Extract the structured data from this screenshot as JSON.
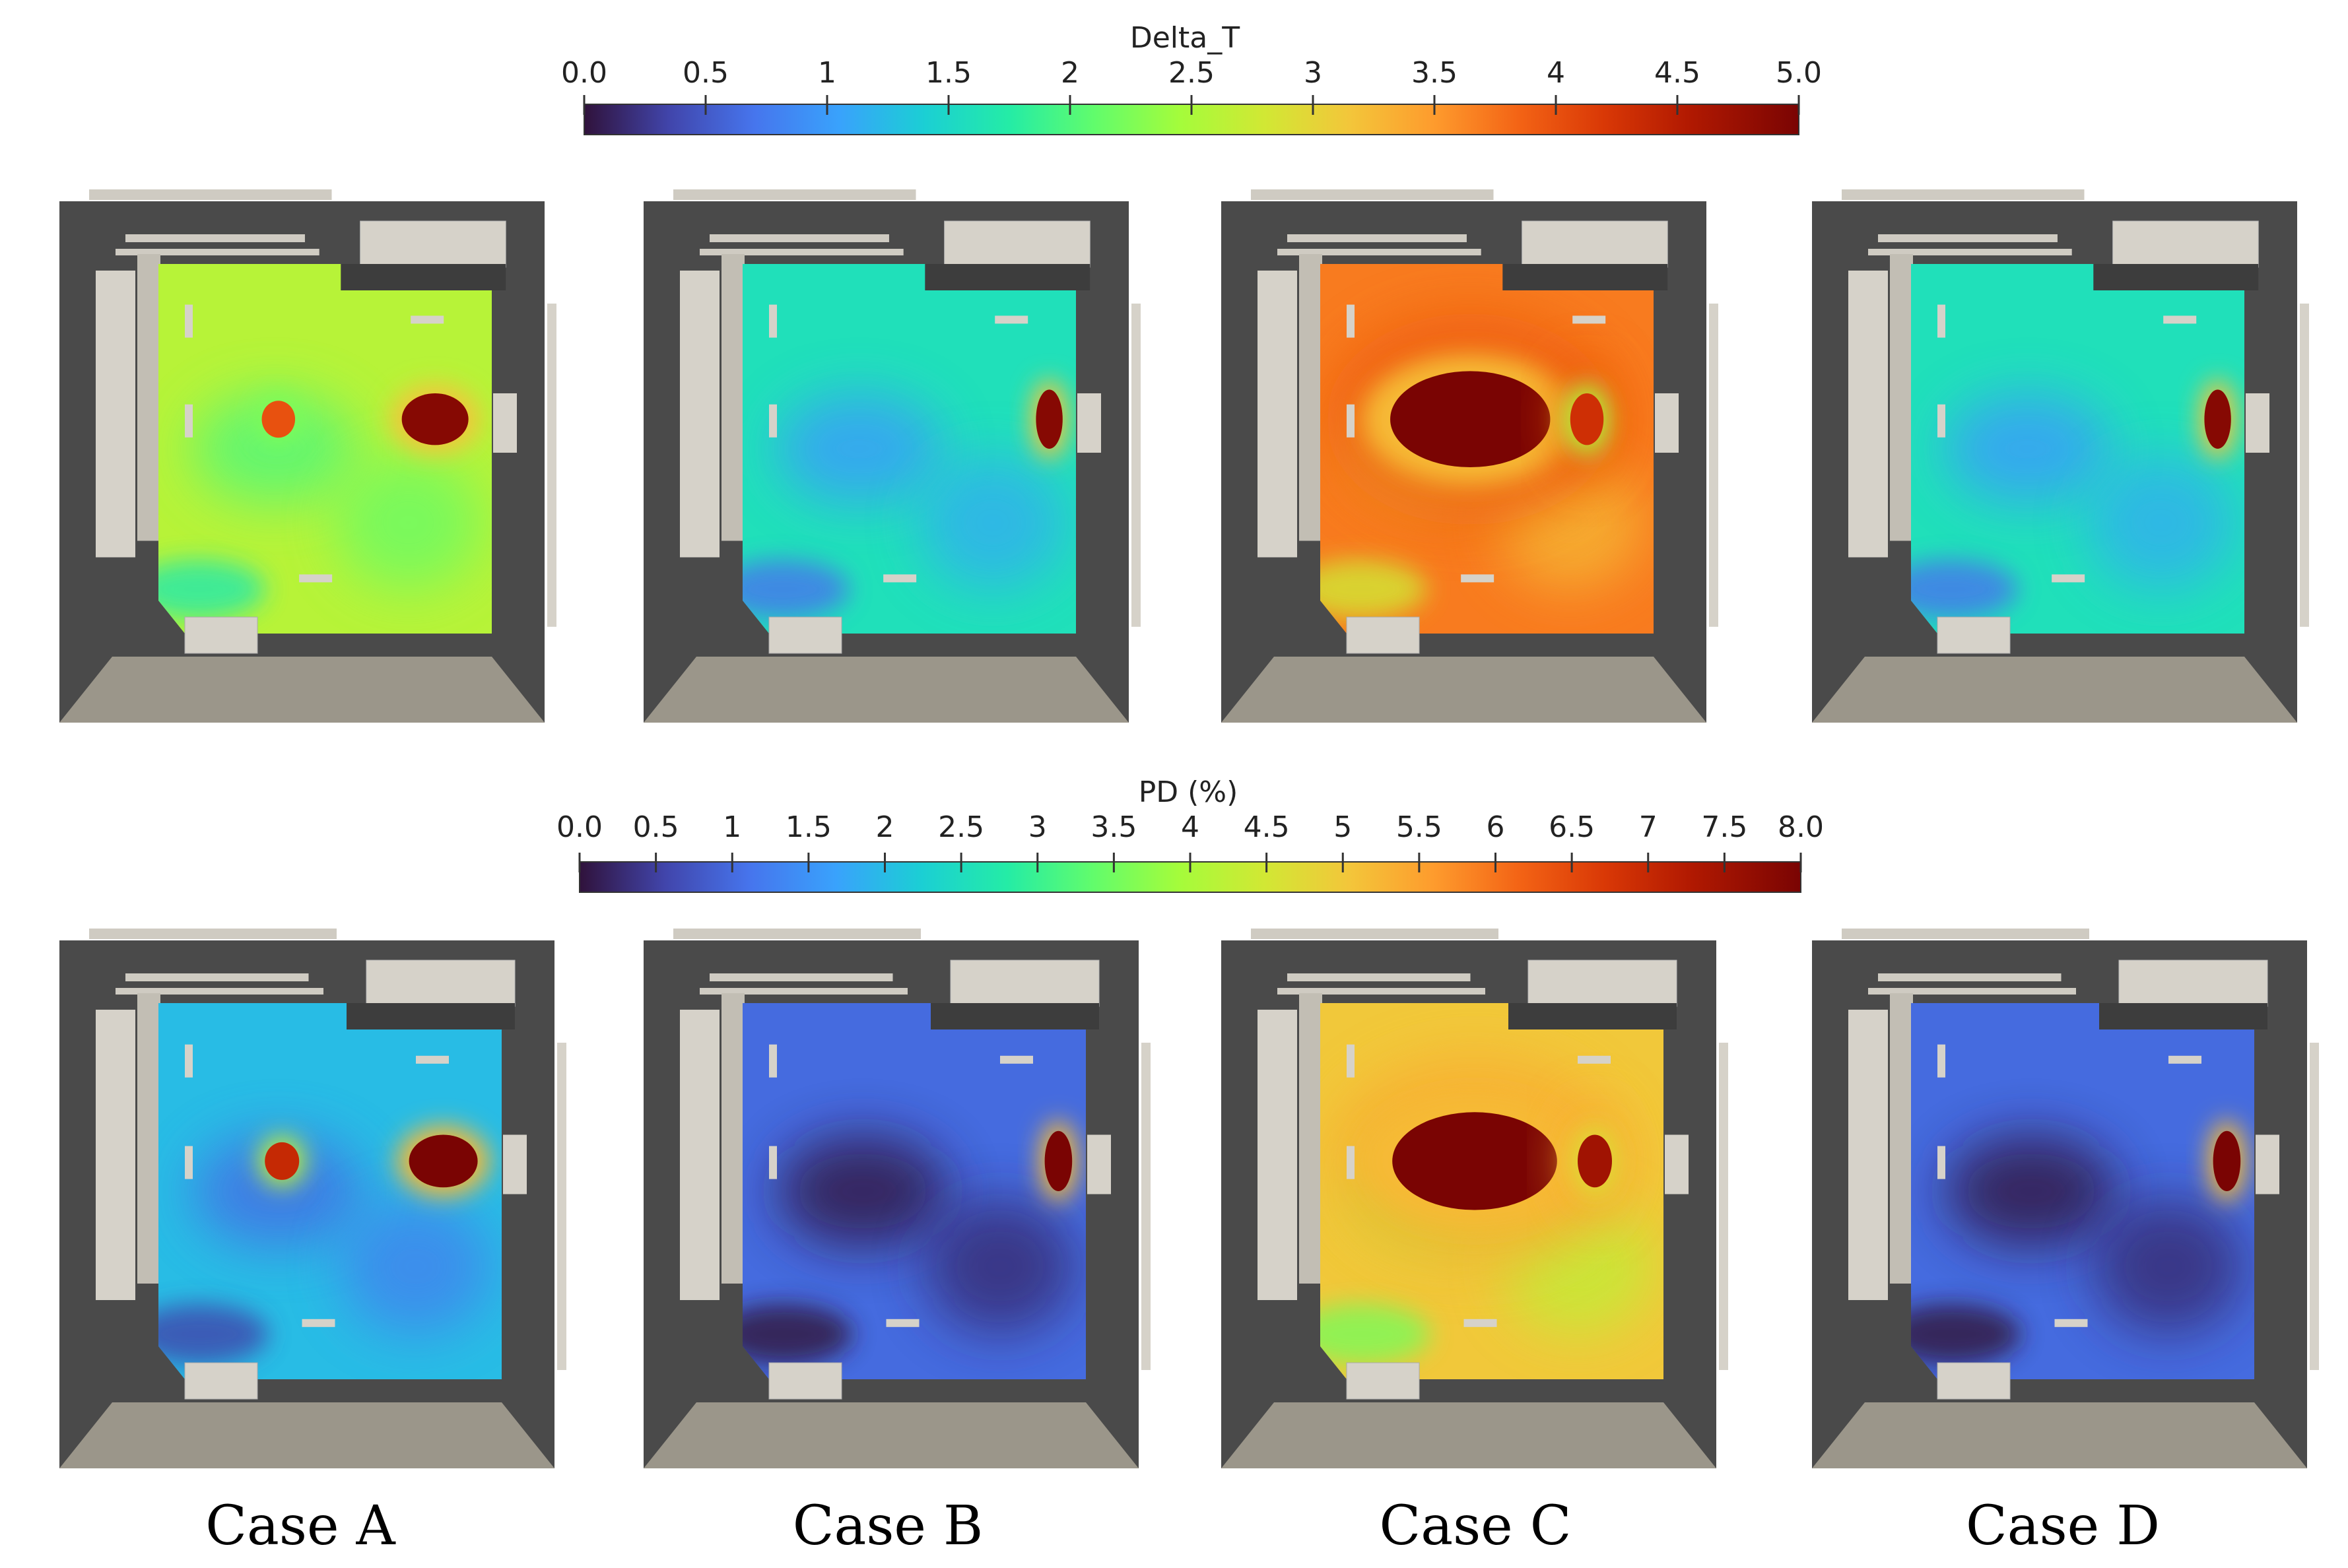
{
  "figure": {
    "case_labels": [
      "Case A",
      "Case B",
      "Case C",
      "Case D"
    ]
  },
  "chart_data": [
    {
      "type": "heatmap",
      "title": "Delta_T",
      "colorbar": {
        "range": [
          0.0,
          5.0
        ],
        "tick_labels": [
          "0.0",
          "0.5",
          "1",
          "1.5",
          "2",
          "2.5",
          "3",
          "3.5",
          "4",
          "4.5",
          "5.0"
        ],
        "tick_values": [
          0,
          0.5,
          1,
          1.5,
          2,
          2.5,
          3,
          3.5,
          4,
          4.5,
          5
        ],
        "colormap": "turbo",
        "orientation": "horizontal",
        "placement": "top-center"
      },
      "panels": [
        {
          "case": "Case A",
          "background_value": 2.6,
          "hotspots": [
            {
              "value": 4.9
            },
            {
              "value": 4.0
            }
          ]
        },
        {
          "case": "Case B",
          "background_value": 1.6,
          "hotspots": [
            {
              "value": 4.9
            }
          ]
        },
        {
          "case": "Case C",
          "background_value": 3.7,
          "hotspots": [
            {
              "value": 5.0
            },
            {
              "value": 4.3
            }
          ]
        },
        {
          "case": "Case D",
          "background_value": 1.6,
          "hotspots": [
            {
              "value": 4.9
            }
          ]
        }
      ]
    },
    {
      "type": "heatmap",
      "title": "PD (%)",
      "colorbar": {
        "range": [
          0.0,
          8.0
        ],
        "tick_labels": [
          "0.0",
          "0.5",
          "1",
          "1.5",
          "2",
          "2.5",
          "3",
          "3.5",
          "4",
          "4.5",
          "5",
          "5.5",
          "6",
          "6.5",
          "7",
          "7.5",
          "8.0"
        ],
        "tick_values": [
          0,
          0.5,
          1,
          1.5,
          2,
          2.5,
          3,
          3.5,
          4,
          4.5,
          5,
          5.5,
          6,
          6.5,
          7,
          7.5,
          8
        ],
        "colormap": "turbo",
        "orientation": "horizontal",
        "placement": "middle-center"
      },
      "panels": [
        {
          "case": "Case A",
          "background_value": 2.0,
          "hotspots": [
            {
              "value": 8.0
            },
            {
              "value": 7.0
            }
          ]
        },
        {
          "case": "Case B",
          "background_value": 1.0,
          "hotspots": [
            {
              "value": 8.0
            }
          ]
        },
        {
          "case": "Case C",
          "background_value": 5.0,
          "hotspots": [
            {
              "value": 8.0
            },
            {
              "value": 7.5
            }
          ]
        },
        {
          "case": "Case D",
          "background_value": 1.0,
          "hotspots": [
            {
              "value": 8.0
            }
          ]
        }
      ]
    }
  ]
}
